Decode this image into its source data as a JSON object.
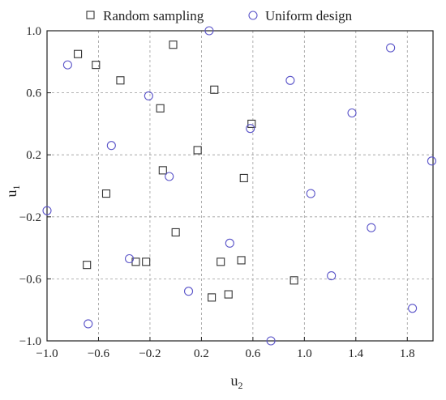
{
  "chart_data": {
    "type": "scatter",
    "title": "",
    "xlabel": "u",
    "xlabel_sub": "2",
    "ylabel": "u",
    "ylabel_sub": "1",
    "xlim": [
      -1.0,
      2.0
    ],
    "ylim": [
      -1.0,
      1.0
    ],
    "xticks": [
      -1.0,
      -0.6,
      -0.2,
      0.2,
      0.6,
      1.0,
      1.4,
      1.8
    ],
    "xtick_labels": [
      "−1.0",
      "−0.6",
      "−0.2",
      "0.2",
      "0.6",
      "1.0",
      "1.4",
      "1.8"
    ],
    "yticks": [
      -1.0,
      -0.6,
      -0.2,
      0.2,
      0.6,
      1.0
    ],
    "ytick_labels": [
      "−1.0",
      "−0.6",
      "−0.2",
      "0.2",
      "0.6",
      "1.0"
    ],
    "grid": true,
    "legend_position": "top",
    "series": [
      {
        "name": "Random sampling",
        "marker": "square",
        "color": "#333333",
        "points": [
          [
            -0.76,
            0.85
          ],
          [
            -0.62,
            0.78
          ],
          [
            -0.43,
            0.68
          ],
          [
            -0.02,
            0.91
          ],
          [
            0.3,
            0.62
          ],
          [
            -0.12,
            0.5
          ],
          [
            0.59,
            0.4
          ],
          [
            0.17,
            0.23
          ],
          [
            -0.1,
            0.1
          ],
          [
            0.53,
            0.05
          ],
          [
            -0.54,
            -0.05
          ],
          [
            0.0,
            -0.3
          ],
          [
            -0.69,
            -0.51
          ],
          [
            -0.31,
            -0.49
          ],
          [
            -0.23,
            -0.49
          ],
          [
            0.35,
            -0.49
          ],
          [
            0.51,
            -0.48
          ],
          [
            0.92,
            -0.61
          ],
          [
            0.28,
            -0.72
          ],
          [
            0.41,
            -0.7
          ]
        ]
      },
      {
        "name": "Uniform design",
        "marker": "circle",
        "color": "#5b55c9",
        "points": [
          [
            -0.84,
            0.78
          ],
          [
            0.26,
            1.0
          ],
          [
            1.67,
            0.89
          ],
          [
            -0.21,
            0.58
          ],
          [
            0.89,
            0.68
          ],
          [
            1.37,
            0.47
          ],
          [
            0.58,
            0.37
          ],
          [
            -0.5,
            0.26
          ],
          [
            1.99,
            0.16
          ],
          [
            -0.05,
            0.06
          ],
          [
            1.05,
            -0.05
          ],
          [
            -1.0,
            -0.16
          ],
          [
            1.52,
            -0.27
          ],
          [
            0.42,
            -0.37
          ],
          [
            -0.36,
            -0.47
          ],
          [
            1.21,
            -0.58
          ],
          [
            0.1,
            -0.68
          ],
          [
            1.84,
            -0.79
          ],
          [
            -0.68,
            -0.89
          ],
          [
            0.74,
            -1.0
          ]
        ]
      }
    ]
  }
}
